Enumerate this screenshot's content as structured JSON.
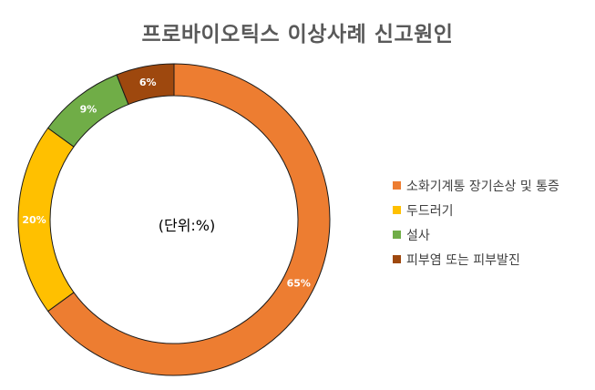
{
  "chart_data": {
    "type": "pie",
    "style": "donut",
    "title": "프로바이오틱스 이상사례 신고원인",
    "center_label": "(단위:%)",
    "legend_position": "right",
    "slices": [
      {
        "label": "소화기계통 장기손상 및 통증",
        "value": 65,
        "value_label": "65%",
        "color": "#ED7D31"
      },
      {
        "label": "두드러기",
        "value": 20,
        "value_label": "20%",
        "color": "#FFC000"
      },
      {
        "label": "설사",
        "value": 9,
        "value_label": "9%",
        "color": "#70AD47"
      },
      {
        "label": "피부염 또는 피부발진",
        "value": 6,
        "value_label": "6%",
        "color": "#9E480E"
      }
    ]
  }
}
